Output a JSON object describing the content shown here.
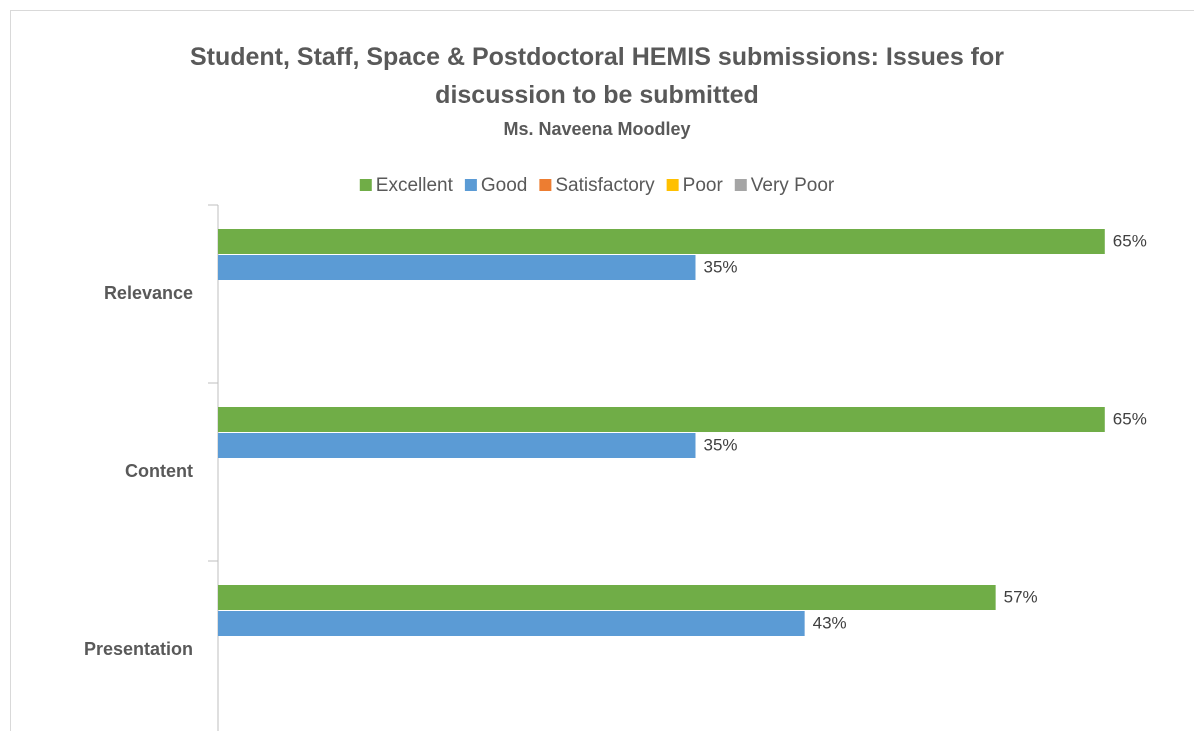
{
  "chart_data": {
    "type": "hbar",
    "title": "Student, Staff, Space & Postdoctoral HEMIS submissions: Issues for discussion to be submitted",
    "subtitle": "Ms. Naveena Moodley",
    "categories": [
      "Relevance",
      "Content",
      "Presentation"
    ],
    "series": [
      {
        "name": "Excellent",
        "color": "#70ad47",
        "values": [
          65,
          65,
          57
        ],
        "value_labels": [
          "65%",
          "65%",
          "57%"
        ]
      },
      {
        "name": "Good",
        "color": "#5b9bd5",
        "values": [
          35,
          35,
          43
        ],
        "value_labels": [
          "35%",
          "35%",
          "43%"
        ]
      },
      {
        "name": "Satisfactory",
        "color": "#ed7d31",
        "values": [
          null,
          null,
          null
        ]
      },
      {
        "name": "Poor",
        "color": "#ffc000",
        "values": [
          null,
          null,
          null
        ]
      },
      {
        "name": "Very Poor",
        "color": "#a5a5a5",
        "values": [
          null,
          null,
          null
        ]
      }
    ],
    "xlim": [
      0,
      70
    ],
    "legend": "top"
  }
}
